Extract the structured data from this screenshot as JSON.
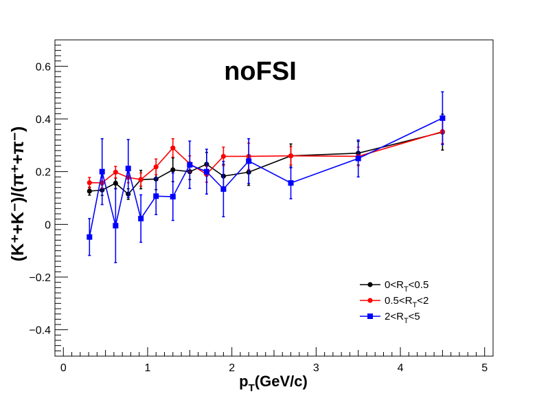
{
  "chart_data": {
    "type": "scatter",
    "title": "noFSI",
    "xlabel": {
      "main": "p",
      "sub": "T",
      "rest": "(GeV/c)"
    },
    "ylabel": "(K⁺+K⁻)/(π⁺+π⁻)",
    "xlim": [
      -0.1,
      5.1
    ],
    "ylim": [
      -0.5,
      0.7
    ],
    "x_ticks": [
      0,
      1,
      2,
      3,
      4,
      5
    ],
    "x_tick_labels": [
      "0",
      "1",
      "2",
      "3",
      "4",
      "5"
    ],
    "y_ticks": [
      -0.4,
      -0.2,
      0,
      0.2,
      0.4,
      0.6
    ],
    "y_tick_labels": [
      "−0.4",
      "−0.2",
      "0",
      "0.2",
      "0.4",
      "0.6"
    ],
    "grid": false,
    "legend_position": "bottom-right",
    "series": [
      {
        "name": "0<RT<0.5",
        "legend_parts": [
          "0<R",
          "T",
          "<0.5"
        ],
        "color": "#000000",
        "marker": "circle",
        "x": [
          0.31,
          0.46,
          0.62,
          0.77,
          0.92,
          1.1,
          1.3,
          1.5,
          1.7,
          1.9,
          2.2,
          2.7,
          3.5,
          4.5
        ],
        "y": [
          0.126,
          0.13,
          0.156,
          0.115,
          0.17,
          0.172,
          0.207,
          0.2,
          0.228,
          0.183,
          0.198,
          0.26,
          0.27,
          0.35
        ],
        "err": [
          0.015,
          0.02,
          0.02,
          0.02,
          0.035,
          0.04,
          0.045,
          0.03,
          0.045,
          0.045,
          0.05,
          0.045,
          0.045,
          0.068
        ]
      },
      {
        "name": "0.5<RT<2",
        "legend_parts": [
          "0.5<R",
          "T",
          "<2"
        ],
        "color": "#ff0000",
        "marker": "circle",
        "x": [
          0.31,
          0.46,
          0.62,
          0.77,
          0.92,
          1.1,
          1.3,
          1.5,
          1.7,
          1.9,
          2.2,
          2.7,
          3.5,
          4.5
        ],
        "y": [
          0.158,
          0.158,
          0.198,
          0.178,
          0.17,
          0.218,
          0.29,
          0.23,
          0.19,
          0.258,
          0.258,
          0.26,
          0.258,
          0.352
        ],
        "err": [
          0.02,
          0.02,
          0.022,
          0.02,
          0.025,
          0.03,
          0.035,
          0.03,
          0.03,
          0.035,
          0.05,
          0.035,
          0.035,
          0.045
        ]
      },
      {
        "name": "2<RT<5",
        "legend_parts": [
          "2<R",
          "T",
          "<5"
        ],
        "color": "#0000ff",
        "marker": "square",
        "x": [
          0.31,
          0.46,
          0.62,
          0.77,
          0.92,
          1.1,
          1.3,
          1.5,
          1.7,
          1.9,
          2.2,
          2.7,
          3.5,
          4.5
        ],
        "y": [
          -0.048,
          0.2,
          -0.005,
          0.212,
          0.022,
          0.107,
          0.105,
          0.226,
          0.2,
          0.134,
          0.24,
          0.157,
          0.25,
          0.403
        ],
        "err": [
          0.07,
          0.125,
          0.14,
          0.11,
          0.09,
          0.07,
          0.09,
          0.09,
          0.085,
          0.105,
          0.085,
          0.06,
          0.07,
          0.1
        ]
      }
    ]
  }
}
